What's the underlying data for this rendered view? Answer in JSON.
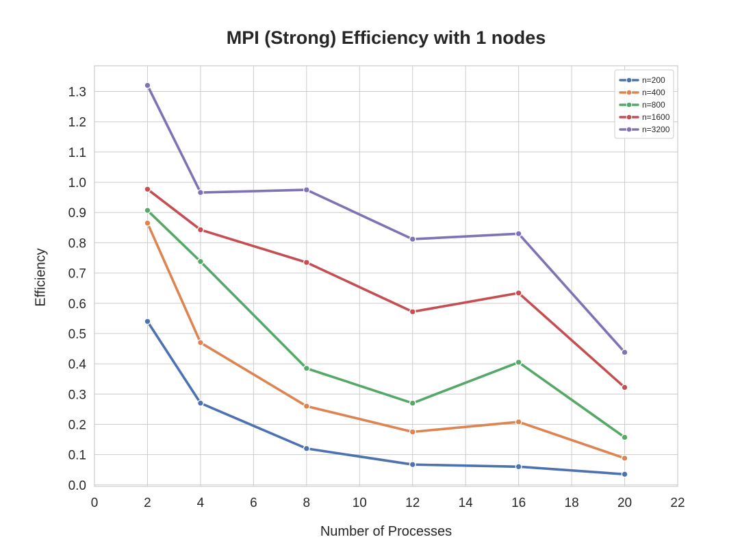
{
  "chart_data": {
    "type": "line",
    "title": "MPI (Strong) Efficiency with 1 nodes",
    "xlabel": "Number of Processes",
    "ylabel": "Efficiency",
    "x": [
      2,
      4,
      8,
      12,
      16,
      20
    ],
    "xlim": [
      0,
      22
    ],
    "ylim": [
      -0.005,
      1.385
    ],
    "xticks": [
      "0",
      "2",
      "4",
      "6",
      "8",
      "10",
      "12",
      "14",
      "16",
      "18",
      "20",
      "22"
    ],
    "yticks": [
      "0.0",
      "0.1",
      "0.2",
      "0.3",
      "0.4",
      "0.5",
      "0.6",
      "0.7",
      "0.8",
      "0.9",
      "1.0",
      "1.1",
      "1.2",
      "1.3"
    ],
    "grid": true,
    "legend_position": "top-right",
    "series": [
      {
        "name": "n=200",
        "color": "#4c72b0",
        "values": [
          0.54,
          0.27,
          0.12,
          0.067,
          0.06,
          0.035
        ]
      },
      {
        "name": "n=400",
        "color": "#dd8452",
        "values": [
          0.865,
          0.47,
          0.26,
          0.175,
          0.208,
          0.088
        ]
      },
      {
        "name": "n=800",
        "color": "#55a868",
        "values": [
          0.907,
          0.738,
          0.385,
          0.27,
          0.405,
          0.157
        ]
      },
      {
        "name": "n=1600",
        "color": "#c44e52",
        "values": [
          0.977,
          0.843,
          0.735,
          0.572,
          0.634,
          0.322
        ]
      },
      {
        "name": "n=3200",
        "color": "#8172b3",
        "values": [
          1.32,
          0.966,
          0.975,
          0.812,
          0.83,
          0.438
        ]
      }
    ]
  }
}
